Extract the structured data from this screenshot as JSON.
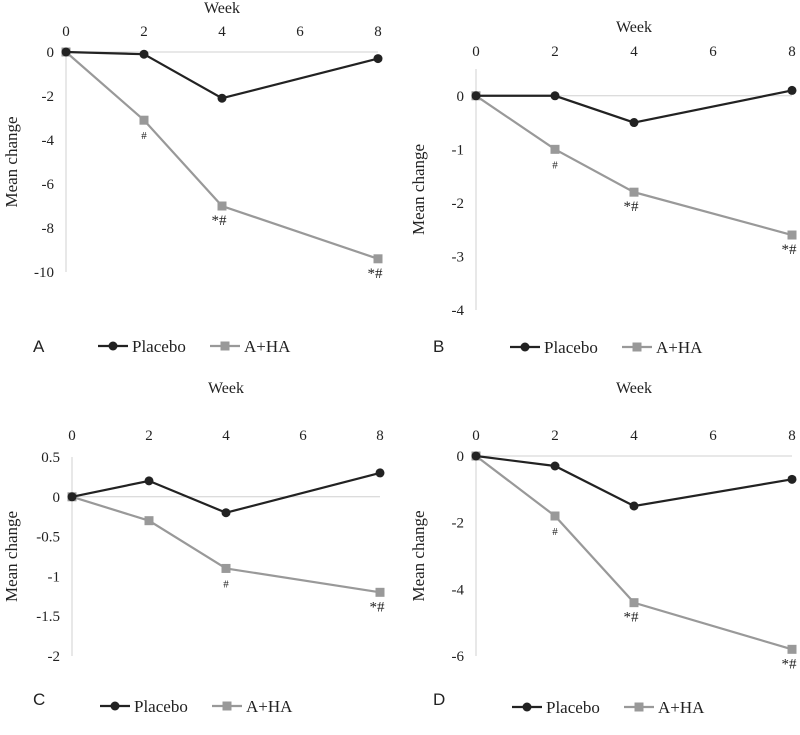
{
  "chart_data": [
    {
      "panel": "A",
      "type": "line",
      "title": "Week",
      "xlabel": "Week",
      "ylabel": "Mean change",
      "x": [
        0,
        2,
        4,
        8
      ],
      "x_ticks": [
        0,
        2,
        4,
        6,
        8
      ],
      "y_ticks": [
        0,
        -2,
        -4,
        -6,
        -8,
        -10
      ],
      "ylim": [
        -10,
        0
      ],
      "series": [
        {
          "name": "Placebo",
          "marker": "circle",
          "color": "#222222",
          "values": [
            0,
            -0.1,
            -2.1,
            -0.3
          ]
        },
        {
          "name": "A+HA",
          "marker": "square",
          "color": "#999999",
          "values": [
            0,
            -3.1,
            -7.0,
            -9.4
          ]
        }
      ],
      "annotations": [
        {
          "x": 2,
          "text": "#"
        },
        {
          "x": 4,
          "text": "*#"
        },
        {
          "x": 8,
          "text": "*#"
        }
      ],
      "legend": [
        "Placebo",
        "A+HA"
      ]
    },
    {
      "panel": "B",
      "type": "line",
      "title": "Week",
      "xlabel": "Week",
      "ylabel": "Mean change",
      "x": [
        0,
        2,
        4,
        8
      ],
      "x_ticks": [
        0,
        2,
        4,
        6,
        8
      ],
      "y_ticks": [
        0,
        -1,
        -2,
        -3,
        -4
      ],
      "ylim": [
        -4,
        0.5
      ],
      "series": [
        {
          "name": "Placebo",
          "marker": "circle",
          "color": "#222222",
          "values": [
            0,
            0,
            -0.5,
            0.1
          ]
        },
        {
          "name": "A+HA",
          "marker": "square",
          "color": "#999999",
          "values": [
            0,
            -1.0,
            -1.8,
            -2.6
          ]
        }
      ],
      "annotations": [
        {
          "x": 2,
          "text": "#"
        },
        {
          "x": 4,
          "text": "*#"
        },
        {
          "x": 8,
          "text": "*#"
        }
      ],
      "legend": [
        "Placebo",
        "A+HA"
      ]
    },
    {
      "panel": "C",
      "type": "line",
      "title": "Week",
      "xlabel": "Week",
      "ylabel": "Mean change",
      "x": [
        0,
        2,
        4,
        8
      ],
      "x_ticks": [
        0,
        2,
        4,
        6,
        8
      ],
      "y_ticks": [
        0.5,
        0,
        -0.5,
        -1,
        -1.5,
        -2
      ],
      "ylim": [
        -2,
        0.5
      ],
      "series": [
        {
          "name": "Placebo",
          "marker": "circle",
          "color": "#222222",
          "values": [
            0,
            0.2,
            -0.2,
            0.3
          ]
        },
        {
          "name": "A+HA",
          "marker": "square",
          "color": "#999999",
          "values": [
            0,
            -0.3,
            -0.9,
            -1.2
          ]
        }
      ],
      "annotations": [
        {
          "x": 4,
          "text": "#"
        },
        {
          "x": 8,
          "text": "*#"
        }
      ],
      "legend": [
        "Placebo",
        "A+HA"
      ]
    },
    {
      "panel": "D",
      "type": "line",
      "title": "Week",
      "xlabel": "Week",
      "ylabel": "Mean change",
      "x": [
        0,
        2,
        4,
        8
      ],
      "x_ticks": [
        0,
        2,
        4,
        6,
        8
      ],
      "y_ticks": [
        0,
        -2,
        -4,
        -6
      ],
      "ylim": [
        -6,
        0
      ],
      "series": [
        {
          "name": "Placebo",
          "marker": "circle",
          "color": "#222222",
          "values": [
            0,
            -0.3,
            -1.5,
            -0.7
          ]
        },
        {
          "name": "A+HA",
          "marker": "square",
          "color": "#999999",
          "values": [
            0,
            -1.8,
            -4.4,
            -5.8
          ]
        }
      ],
      "annotations": [
        {
          "x": 2,
          "text": "#"
        },
        {
          "x": 4,
          "text": "*#"
        },
        {
          "x": 8,
          "text": "*#"
        }
      ],
      "legend": [
        "Placebo",
        "A+HA"
      ]
    }
  ]
}
